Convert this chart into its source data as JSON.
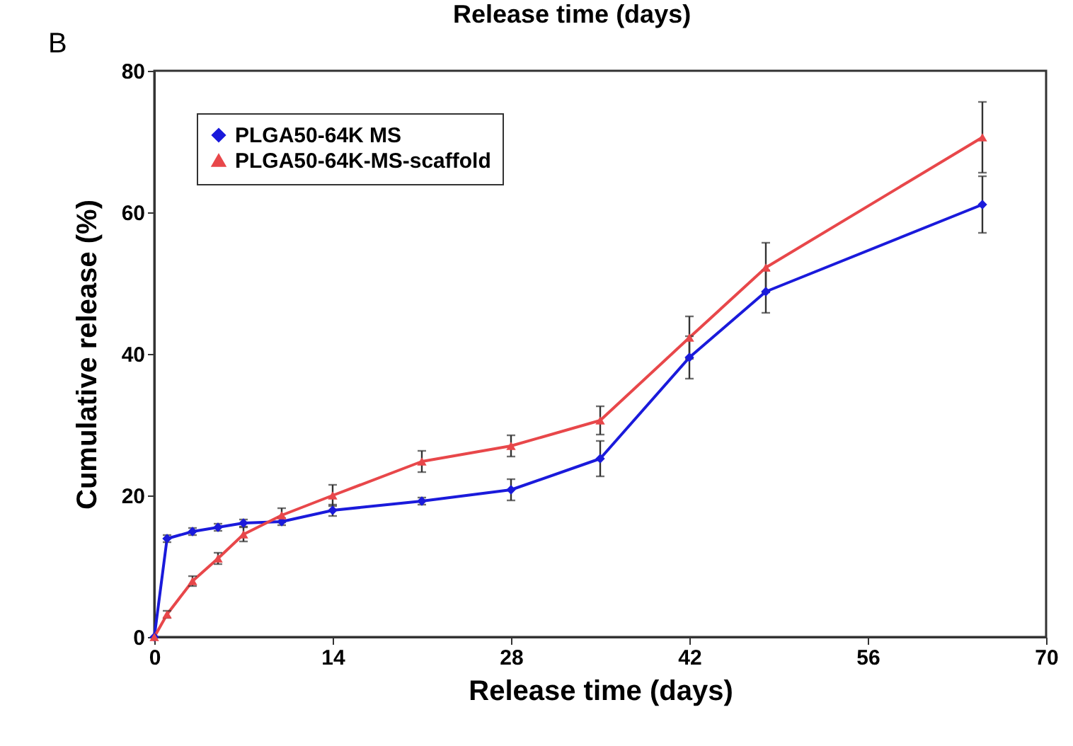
{
  "chart_data": {
    "type": "line",
    "annotations": [
      "Release time (days)",
      "B"
    ],
    "xlabel": "Release time (days)",
    "ylabel": "Cumulative release (%)",
    "xlim": [
      0,
      70
    ],
    "xticks": [
      0,
      14,
      28,
      42,
      56,
      70
    ],
    "ylim": [
      0,
      80
    ],
    "yticks": [
      0,
      20,
      40,
      60,
      80
    ],
    "grid": false,
    "legend": "top left",
    "series": [
      {
        "name": "PLGA50-64K MS",
        "color": "#1a1adb",
        "marker": "diamond",
        "x": [
          0,
          1,
          3,
          5,
          7,
          10,
          14,
          21,
          28,
          35,
          42,
          48,
          65
        ],
        "values": [
          0,
          13.9,
          14.9,
          15.5,
          16.1,
          16.3,
          17.9,
          19.2,
          20.8,
          25.2,
          39.5,
          48.8,
          61.1
        ],
        "errors": [
          null,
          0.5,
          0.5,
          0.5,
          0.5,
          0.5,
          0.8,
          0.5,
          1.5,
          2.5,
          3,
          3,
          4
        ]
      },
      {
        "name": "PLGA50-64K-MS-scaffold",
        "color": "#e8474a",
        "marker": "triangle",
        "x": [
          0,
          1,
          3,
          5,
          7,
          10,
          14,
          21,
          28,
          35,
          42,
          48,
          65
        ],
        "values": [
          0,
          3.2,
          7.9,
          11.1,
          14.5,
          17.2,
          20.0,
          24.8,
          27.0,
          30.6,
          42.3,
          52.2,
          70.6
        ],
        "errors": [
          null,
          0.5,
          0.7,
          0.8,
          1,
          1,
          1.5,
          1.5,
          1.5,
          2,
          3,
          3.5,
          5
        ]
      }
    ]
  }
}
